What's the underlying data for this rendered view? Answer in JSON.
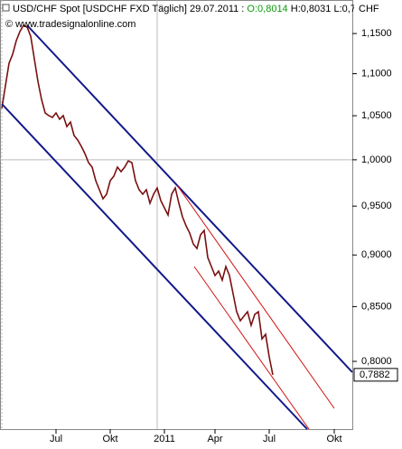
{
  "chart_data": {
    "type": "line",
    "title": "USD/CHF Spot [USDCHF FXD  Täglich] 29.07.2011 :",
    "open_text": "O:0,8014",
    "rest_text": "H:0,8031 L:0,7",
    "unit": "CHF",
    "subtitle": "© www.tradesignalonline.com",
    "log_scale": true,
    "categories": [
      null,
      null,
      null,
      null,
      null,
      null,
      null,
      null,
      null,
      null,
      null,
      null,
      null,
      null,
      null,
      "Jul",
      null,
      null,
      null,
      null,
      null,
      null,
      null,
      null,
      null,
      null,
      null,
      null,
      null,
      null,
      "Okt",
      null,
      null,
      null,
      null,
      null,
      null,
      null,
      null,
      null,
      null,
      null,
      null,
      null,
      null,
      "2011",
      null,
      null,
      null,
      null,
      null,
      null,
      null,
      null,
      null,
      null,
      null,
      null,
      null,
      "Apr",
      null,
      null,
      null,
      null,
      null,
      null,
      null,
      null,
      null,
      null,
      null,
      null,
      null,
      null,
      "Jul",
      null,
      null,
      null,
      null,
      null,
      null,
      null,
      null,
      null,
      null,
      null,
      null,
      null,
      null,
      null,
      null,
      null,
      "Okt",
      null,
      null,
      null,
      null
    ],
    "series": [
      {
        "name": "USD/CHF",
        "color": "#7a1010",
        "values": [
          1.0585,
          1.0853,
          1.1128,
          1.1239,
          1.1409,
          1.1524,
          1.1605,
          1.1582,
          1.1466,
          1.1183,
          1.0907,
          1.0691,
          1.0532,
          1.0501,
          1.048,
          1.0532,
          1.0459,
          1.0501,
          1.0375,
          1.0427,
          1.0272,
          1.0221,
          1.015,
          1.0069,
          0.9969,
          0.9919,
          0.9771,
          0.9674,
          0.9578,
          0.9626,
          0.9771,
          0.982,
          0.9919,
          0.987,
          0.9919,
          0.9989,
          0.9969,
          0.9771,
          0.9674,
          0.9626,
          0.9674,
          0.953,
          0.9626,
          0.9694,
          0.9558,
          0.9482,
          0.9407,
          0.9626,
          0.9694,
          0.953,
          0.9388,
          0.9295,
          0.9221,
          0.911,
          0.9065,
          0.9203,
          0.9248,
          0.8975,
          0.8886,
          0.8797,
          0.8841,
          0.8753,
          0.8886,
          0.8797,
          0.8623,
          0.8452,
          0.8368,
          0.841,
          0.8452,
          0.8326,
          0.8427,
          0.8452,
          0.8202,
          0.8244,
          0.804,
          0.7882,
          null,
          null,
          null,
          null,
          null,
          null,
          null,
          null,
          null,
          null,
          null,
          null,
          null,
          null,
          null,
          null,
          null,
          null,
          null,
          null,
          null
        ],
        "value_labels": [
          null,
          null,
          null,
          null,
          null,
          null,
          null,
          null,
          null,
          null,
          null,
          null,
          null,
          null,
          null,
          null,
          null,
          null,
          null,
          null,
          null,
          null,
          null,
          null,
          null,
          null,
          null,
          null,
          null,
          null,
          null,
          null,
          null,
          null,
          null,
          null,
          null,
          null,
          null,
          null,
          null,
          null,
          null,
          null,
          null,
          null,
          null,
          null,
          null,
          null,
          null,
          null,
          null,
          null,
          null,
          null,
          null,
          null,
          null,
          null,
          null,
          null,
          null,
          null,
          null,
          null,
          null,
          null,
          null,
          null,
          null,
          null,
          null,
          null,
          null,
          "0,7882",
          null,
          null,
          null,
          null,
          null,
          null,
          null,
          null,
          null,
          null,
          null,
          null,
          null,
          null,
          null,
          null,
          null,
          null,
          null,
          null,
          null
        ]
      }
    ],
    "ylim": [
      0.7422,
      1.1935
    ],
    "yticks": [
      {
        "value": 1.15,
        "label": "1,1500"
      },
      {
        "value": 1.1,
        "label": "1,1000"
      },
      {
        "value": 1.05,
        "label": "1,0500"
      },
      {
        "value": 1.0,
        "label": "1,0000"
      },
      {
        "value": 0.95,
        "label": "0,9500"
      },
      {
        "value": 0.9,
        "label": "0,9000"
      },
      {
        "value": 0.85,
        "label": "0,8500"
      },
      {
        "value": 0.8,
        "label": "0,8000"
      }
    ]
  }
}
